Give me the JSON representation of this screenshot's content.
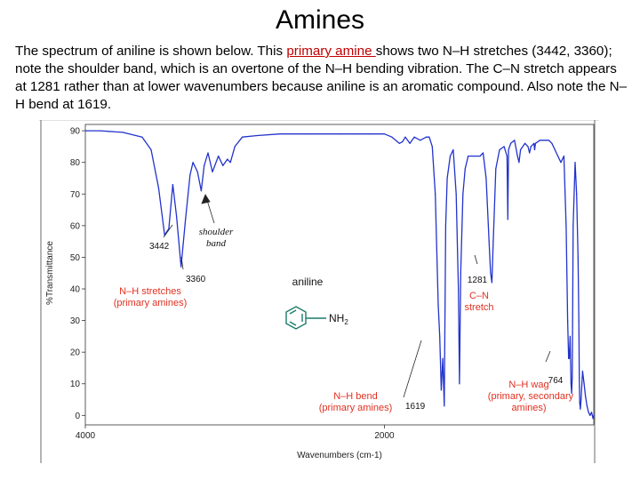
{
  "slide": {
    "title": "Amines",
    "intro_before": "The spectrum of aniline is shown below. This ",
    "intro_keyword": "primary amine ",
    "intro_after": "shows two N–H stretches (3442, 3360); note the shoulder band, which is an overtone of the N–H bending vibration. The C–N stretch appears at 1281 rather than at lower wavenumbers because aniline is an aromatic compound. Also note the N–H bend at 1619."
  },
  "colors": {
    "trace": "#2233cc",
    "annotation": "#e03020",
    "keyword": "#c00000",
    "molecule": "#1a7a6a"
  },
  "chart_data": {
    "type": "line",
    "title": "",
    "xlabel": "Wavenumbers (cm-1)",
    "ylabel": "%Transmittance",
    "xlim": [
      4000,
      600
    ],
    "ylim": [
      -3,
      92
    ],
    "x_ticks": [
      "4000",
      "2000"
    ],
    "x_tick_values": [
      4000,
      2000
    ],
    "y_ticks": [
      "90",
      "80",
      "70",
      "60",
      "50",
      "40",
      "30",
      "20",
      "10",
      "0"
    ],
    "y_tick_values": [
      90,
      80,
      70,
      60,
      50,
      40,
      30,
      20,
      10,
      0
    ],
    "series": [
      {
        "name": "aniline",
        "points": [
          [
            4000,
            90
          ],
          [
            3900,
            90
          ],
          [
            3750,
            89.5
          ],
          [
            3620,
            88
          ],
          [
            3560,
            84
          ],
          [
            3510,
            72
          ],
          [
            3470,
            57
          ],
          [
            3442,
            59
          ],
          [
            3415,
            73
          ],
          [
            3390,
            63
          ],
          [
            3360,
            47
          ],
          [
            3330,
            62
          ],
          [
            3300,
            76
          ],
          [
            3280,
            80
          ],
          [
            3250,
            77
          ],
          [
            3225,
            71
          ],
          [
            3205,
            79
          ],
          [
            3180,
            83
          ],
          [
            3150,
            77
          ],
          [
            3110,
            82
          ],
          [
            3080,
            79
          ],
          [
            3050,
            81
          ],
          [
            3030,
            80
          ],
          [
            3000,
            85
          ],
          [
            2950,
            88
          ],
          [
            2850,
            88.5
          ],
          [
            2700,
            89
          ],
          [
            2500,
            89
          ],
          [
            2300,
            89
          ],
          [
            2200,
            89
          ],
          [
            2100,
            89
          ],
          [
            2000,
            89
          ],
          [
            1950,
            88
          ],
          [
            1900,
            86
          ],
          [
            1880,
            86.5
          ],
          [
            1860,
            88
          ],
          [
            1830,
            86
          ],
          [
            1800,
            88
          ],
          [
            1760,
            87
          ],
          [
            1720,
            88
          ],
          [
            1700,
            88
          ],
          [
            1680,
            85
          ],
          [
            1660,
            70
          ],
          [
            1640,
            35
          ],
          [
            1630,
            25
          ],
          [
            1620,
            8
          ],
          [
            1610,
            18
          ],
          [
            1600,
            3
          ],
          [
            1590,
            60
          ],
          [
            1580,
            75
          ],
          [
            1560,
            82
          ],
          [
            1540,
            84
          ],
          [
            1520,
            70
          ],
          [
            1505,
            40
          ],
          [
            1498,
            10
          ],
          [
            1490,
            45
          ],
          [
            1475,
            70
          ],
          [
            1460,
            78
          ],
          [
            1440,
            82
          ],
          [
            1400,
            82
          ],
          [
            1360,
            82
          ],
          [
            1340,
            83
          ],
          [
            1320,
            75
          ],
          [
            1300,
            55
          ],
          [
            1290,
            45
          ],
          [
            1281,
            42
          ],
          [
            1272,
            55
          ],
          [
            1255,
            78
          ],
          [
            1230,
            84
          ],
          [
            1200,
            85
          ],
          [
            1180,
            82
          ],
          [
            1175,
            62
          ],
          [
            1170,
            84
          ],
          [
            1155,
            86
          ],
          [
            1130,
            87
          ],
          [
            1110,
            82
          ],
          [
            1100,
            80
          ],
          [
            1090,
            84
          ],
          [
            1060,
            86
          ],
          [
            1040,
            85
          ],
          [
            1030,
            83
          ],
          [
            1020,
            85
          ],
          [
            1000,
            86
          ],
          [
            995,
            84
          ],
          [
            990,
            86
          ],
          [
            960,
            87
          ],
          [
            900,
            87
          ],
          [
            880,
            86
          ],
          [
            860,
            84
          ],
          [
            840,
            82
          ],
          [
            820,
            80
          ],
          [
            800,
            82
          ],
          [
            785,
            60
          ],
          [
            775,
            30
          ],
          [
            768,
            18
          ],
          [
            764,
            18
          ],
          [
            758,
            25
          ],
          [
            752,
            10
          ],
          [
            748,
            7
          ],
          [
            744,
            12
          ],
          [
            738,
            60
          ],
          [
            725,
            80
          ],
          [
            715,
            70
          ],
          [
            705,
            50
          ],
          [
            700,
            30
          ],
          [
            697,
            12
          ],
          [
            694,
            4
          ],
          [
            690,
            2
          ],
          [
            685,
            5
          ],
          [
            675,
            14
          ],
          [
            665,
            10
          ],
          [
            655,
            6
          ],
          [
            645,
            3
          ],
          [
            635,
            1
          ],
          [
            625,
            0
          ],
          [
            615,
            1
          ],
          [
            605,
            -1
          ],
          [
            600,
            0
          ]
        ]
      }
    ],
    "annotations": {
      "peak_3442": "3442",
      "peak_3360": "3360",
      "shoulder_line1": "shoulder",
      "shoulder_line2": "band",
      "nh_stretch_line1": "N–H stretches",
      "nh_stretch_line2": "(primary amines)",
      "compound": "aniline",
      "substituent": "NH",
      "substituent_sub": "2",
      "peak_1281": "1281",
      "cn_line1": "C–N",
      "cn_line2": "stretch",
      "peak_1619": "1619",
      "nh_bend_line1": "N–H bend",
      "nh_bend_line2": "(primary amines)",
      "peak_764": "764",
      "nh_wag_line1": "N–H wag",
      "nh_wag_line2": "(primary, secondary",
      "nh_wag_line3": "amines)"
    }
  }
}
